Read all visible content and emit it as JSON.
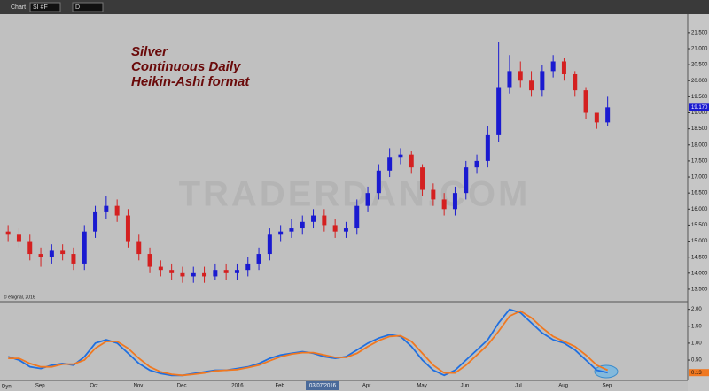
{
  "window": {
    "title": "Chart",
    "symbol": "SI #F",
    "interval": "D",
    "mode": "Dyn",
    "copyright": "© eSignal, 2016"
  },
  "chart_data": [
    {
      "type": "candlestick",
      "title": [
        "Silver",
        "Continuous Daily",
        "Heikin-Ashi format"
      ],
      "watermark": "TRADERDAN.COM",
      "cursor_label": "03/07/2016",
      "last_price": {
        "value": 19.17,
        "label": "19.170"
      },
      "up_color": "#1a1ad0",
      "down_color": "#d42020",
      "categories": [
        null,
        null,
        null,
        "Sep",
        null,
        null,
        null,
        null,
        "Oct",
        null,
        null,
        null,
        "Nov",
        null,
        null,
        null,
        "Dec",
        null,
        null,
        null,
        null,
        "2016",
        null,
        null,
        null,
        "Feb",
        null,
        null,
        null,
        null,
        null,
        null,
        null,
        "Apr",
        null,
        null,
        null,
        null,
        "May",
        null,
        null,
        null,
        "Jun",
        null,
        null,
        null,
        null,
        "Jul",
        null,
        null,
        null,
        "Aug",
        null,
        null,
        null,
        "Sep"
      ],
      "open": [
        15.3,
        15.2,
        15.0,
        14.6,
        14.5,
        14.7,
        14.6,
        14.3,
        15.3,
        15.9,
        16.1,
        15.8,
        15.0,
        14.6,
        14.2,
        14.1,
        14.0,
        13.9,
        14.0,
        13.9,
        14.1,
        14.0,
        14.1,
        14.3,
        14.6,
        15.2,
        15.3,
        15.4,
        15.6,
        15.8,
        15.5,
        15.3,
        15.4,
        16.1,
        16.5,
        17.2,
        17.6,
        17.7,
        17.3,
        16.6,
        16.3,
        16.0,
        16.5,
        17.3,
        17.5,
        18.3,
        19.8,
        20.3,
        20.0,
        19.7,
        20.3,
        20.6,
        20.2,
        19.7,
        19.0,
        18.7
      ],
      "high": [
        15.5,
        15.4,
        15.2,
        14.8,
        14.9,
        14.9,
        14.8,
        15.5,
        16.1,
        16.4,
        16.3,
        16.0,
        15.2,
        14.8,
        14.4,
        14.3,
        14.2,
        14.2,
        14.2,
        14.3,
        14.3,
        14.3,
        14.5,
        14.8,
        15.4,
        15.5,
        15.7,
        15.8,
        16.0,
        16.0,
        15.7,
        15.6,
        16.3,
        16.7,
        17.4,
        17.9,
        17.9,
        17.8,
        17.4,
        16.8,
        16.5,
        16.7,
        17.5,
        17.7,
        18.6,
        21.2,
        20.8,
        20.6,
        20.3,
        20.5,
        20.8,
        20.7,
        20.3,
        19.8,
        19.0,
        19.5
      ],
      "low": [
        15.0,
        14.8,
        14.4,
        14.2,
        14.3,
        14.4,
        14.1,
        14.1,
        15.1,
        15.7,
        15.6,
        14.8,
        14.4,
        14.0,
        13.9,
        13.8,
        13.7,
        13.7,
        13.7,
        13.8,
        13.8,
        13.8,
        13.9,
        14.1,
        14.4,
        15.0,
        15.1,
        15.2,
        15.4,
        15.3,
        15.1,
        15.1,
        15.2,
        15.9,
        16.3,
        17.0,
        17.4,
        17.1,
        16.4,
        16.1,
        15.8,
        15.8,
        16.3,
        17.1,
        17.3,
        18.1,
        19.6,
        19.8,
        19.5,
        19.5,
        20.1,
        20.0,
        19.5,
        18.8,
        18.5,
        18.6
      ],
      "close": [
        15.2,
        15.0,
        14.6,
        14.5,
        14.7,
        14.6,
        14.3,
        15.3,
        15.9,
        16.1,
        15.8,
        15.0,
        14.6,
        14.2,
        14.1,
        14.0,
        13.9,
        14.0,
        13.9,
        14.1,
        14.0,
        14.1,
        14.3,
        14.6,
        15.2,
        15.3,
        15.4,
        15.6,
        15.8,
        15.5,
        15.3,
        15.4,
        16.1,
        16.5,
        17.2,
        17.6,
        17.7,
        17.3,
        16.6,
        16.3,
        16.0,
        16.5,
        17.3,
        17.5,
        18.3,
        19.8,
        20.3,
        20.0,
        19.7,
        20.3,
        20.6,
        20.2,
        19.7,
        19.0,
        18.7,
        19.17
      ],
      "ylim": [
        13.14,
        22.02
      ],
      "yticks": [
        {
          "value": 13.5,
          "label": "13.500"
        },
        {
          "value": 14,
          "label": "14.000"
        },
        {
          "value": 14.5,
          "label": "14.500"
        },
        {
          "value": 15,
          "label": "15.000"
        },
        {
          "value": 15.5,
          "label": "15.500"
        },
        {
          "value": 16,
          "label": "16.000"
        },
        {
          "value": 16.5,
          "label": "16.500"
        },
        {
          "value": 17,
          "label": "17.000"
        },
        {
          "value": 17.5,
          "label": "17.500"
        },
        {
          "value": 18,
          "label": "18.000"
        },
        {
          "value": 18.5,
          "label": "18.500"
        },
        {
          "value": 19,
          "label": "19.000"
        },
        {
          "value": 19.5,
          "label": "19.500"
        },
        {
          "value": 20,
          "label": "20.000"
        },
        {
          "value": 20.5,
          "label": "20.500"
        },
        {
          "value": 21,
          "label": "21.000"
        },
        {
          "value": 21.5,
          "label": "21.500"
        }
      ]
    },
    {
      "type": "line",
      "series": [
        {
          "color": "#1f6fe0",
          "values": [
            0.6,
            0.5,
            0.3,
            0.25,
            0.35,
            0.4,
            0.35,
            0.6,
            1.0,
            1.1,
            1.0,
            0.7,
            0.4,
            0.2,
            0.1,
            0.05,
            0.05,
            0.1,
            0.15,
            0.2,
            0.2,
            0.25,
            0.3,
            0.4,
            0.55,
            0.65,
            0.7,
            0.75,
            0.7,
            0.6,
            0.55,
            0.6,
            0.8,
            1.0,
            1.15,
            1.25,
            1.2,
            0.9,
            0.5,
            0.2,
            0.05,
            0.2,
            0.5,
            0.8,
            1.1,
            1.6,
            2.0,
            1.9,
            1.6,
            1.3,
            1.1,
            1.0,
            0.8,
            0.5,
            0.2,
            0.13
          ]
        },
        {
          "color": "#f07820",
          "values": [
            0.55,
            0.55,
            0.4,
            0.3,
            0.3,
            0.38,
            0.38,
            0.5,
            0.85,
            1.05,
            1.05,
            0.85,
            0.55,
            0.3,
            0.15,
            0.08,
            0.05,
            0.08,
            0.12,
            0.18,
            0.2,
            0.22,
            0.28,
            0.35,
            0.48,
            0.6,
            0.68,
            0.72,
            0.72,
            0.65,
            0.58,
            0.58,
            0.7,
            0.9,
            1.08,
            1.2,
            1.22,
            1.05,
            0.7,
            0.35,
            0.12,
            0.12,
            0.35,
            0.65,
            0.95,
            1.35,
            1.8,
            1.95,
            1.75,
            1.45,
            1.2,
            1.05,
            0.9,
            0.65,
            0.35,
            0.2
          ]
        }
      ],
      "ylim": [
        -0.1,
        2.2
      ],
      "yticks": [
        {
          "value": 0.5,
          "label": "0.50"
        },
        {
          "value": 1,
          "label": "1.00"
        },
        {
          "value": 1.5,
          "label": "1.50"
        },
        {
          "value": 2,
          "label": "2.00"
        }
      ]
    }
  ]
}
